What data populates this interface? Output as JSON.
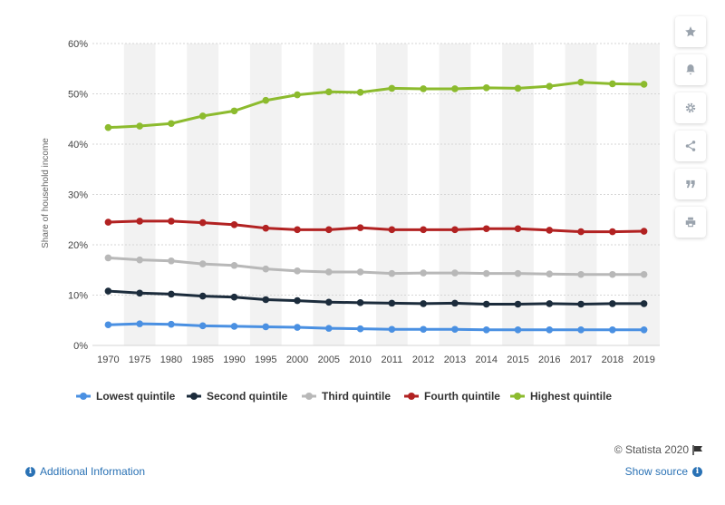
{
  "chart_data": {
    "type": "line",
    "ylabel": "Share of household income",
    "xlabel": "",
    "ylim": [
      0,
      60
    ],
    "yticks": [
      "0%",
      "10%",
      "20%",
      "30%",
      "40%",
      "50%",
      "60%"
    ],
    "y_tick_values": [
      0,
      10,
      20,
      30,
      40,
      50,
      60
    ],
    "grid": "horizontal dotted",
    "legend_position": "bottom",
    "categories": [
      "1970",
      "1975",
      "1980",
      "1985",
      "1990",
      "1995",
      "2000",
      "2005",
      "2010",
      "2011",
      "2012",
      "2013",
      "2014",
      "2015",
      "2016",
      "2017",
      "2018",
      "2019"
    ],
    "series": [
      {
        "name": "Lowest quintile",
        "color": "#4a90e2",
        "values": [
          4.1,
          4.3,
          4.2,
          3.9,
          3.8,
          3.7,
          3.6,
          3.4,
          3.3,
          3.2,
          3.2,
          3.2,
          3.1,
          3.1,
          3.1,
          3.1,
          3.1,
          3.1
        ]
      },
      {
        "name": "Second quintile",
        "color": "#1c2c3c",
        "values": [
          10.8,
          10.4,
          10.2,
          9.8,
          9.6,
          9.1,
          8.9,
          8.6,
          8.5,
          8.4,
          8.3,
          8.4,
          8.2,
          8.2,
          8.3,
          8.2,
          8.3,
          8.3
        ]
      },
      {
        "name": "Third quintile",
        "color": "#b8b8b8",
        "values": [
          17.4,
          17.0,
          16.8,
          16.2,
          15.9,
          15.2,
          14.8,
          14.6,
          14.6,
          14.3,
          14.4,
          14.4,
          14.3,
          14.3,
          14.2,
          14.1,
          14.1,
          14.1
        ]
      },
      {
        "name": "Fourth quintile",
        "color": "#b22222",
        "values": [
          24.5,
          24.7,
          24.7,
          24.4,
          24.0,
          23.3,
          23.0,
          23.0,
          23.4,
          23.0,
          23.0,
          23.0,
          23.2,
          23.2,
          22.9,
          22.6,
          22.6,
          22.7
        ]
      },
      {
        "name": "Highest quintile",
        "color": "#8cbb2e",
        "values": [
          43.3,
          43.6,
          44.1,
          45.6,
          46.6,
          48.7,
          49.8,
          50.4,
          50.3,
          51.1,
          51.0,
          51.0,
          51.2,
          51.1,
          51.5,
          52.3,
          52.0,
          51.9
        ]
      }
    ]
  },
  "toolbar": {
    "icons": [
      "star-icon",
      "bell-icon",
      "gear-icon",
      "share-icon",
      "quote-icon",
      "print-icon"
    ]
  },
  "footer": {
    "credit": "© Statista 2020",
    "additional_info": "Additional Information",
    "show_source": "Show source"
  }
}
